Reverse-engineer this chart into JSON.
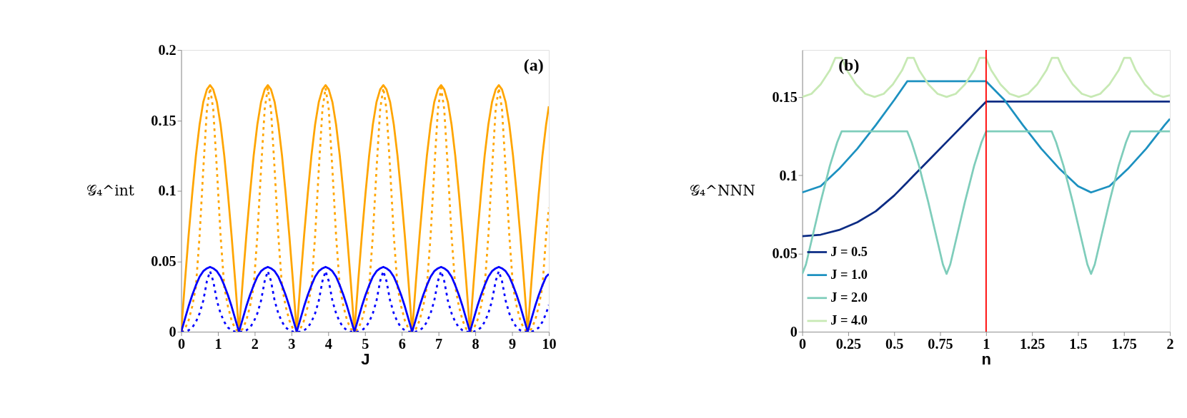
{
  "chart_data": [
    {
      "type": "line",
      "xlabel": "J",
      "ylabel": "𝒢₄^int",
      "annotations": [
        "(a)"
      ],
      "x": [
        0,
        0.1,
        0.2,
        0.3,
        0.4,
        0.5,
        0.6,
        0.7,
        0.785,
        0.871,
        0.971,
        1.071,
        1.171,
        1.271,
        1.371,
        1.471,
        1.571,
        1.671,
        1.771,
        1.871,
        1.971,
        2.071,
        2.171,
        2.271,
        2.356,
        2.442,
        2.542,
        2.642,
        2.742,
        2.842,
        2.942,
        3.042,
        3.142,
        3.242,
        3.342,
        3.442,
        3.542,
        3.642,
        3.742,
        3.842,
        3.927,
        4.013,
        4.113,
        4.213,
        4.313,
        4.413,
        4.513,
        4.613,
        4.712,
        4.812,
        4.912,
        5.012,
        5.112,
        5.212,
        5.312,
        5.412,
        5.498,
        5.583,
        5.683,
        5.783,
        5.883,
        5.983,
        6.083,
        6.183,
        6.283,
        6.383,
        6.483,
        6.583,
        6.683,
        6.783,
        6.883,
        6.983,
        7.069,
        7.154,
        7.254,
        7.354,
        7.454,
        7.554,
        7.654,
        7.754,
        7.854,
        7.954,
        8.054,
        8.154,
        8.254,
        8.354,
        8.454,
        8.554,
        8.639,
        8.725,
        8.825,
        8.925,
        9.025,
        9.125,
        9.225,
        9.325,
        9.425,
        9.525,
        9.625,
        9.725,
        9.825,
        9.925,
        10
      ],
      "series": [
        {
          "color": "#ffa500",
          "line_style": "solid",
          "values": [
            0,
            0.035,
            0.068,
            0.098,
            0.125,
            0.147,
            0.163,
            0.172,
            0.175,
            0.172,
            0.163,
            0.147,
            0.125,
            0.098,
            0.068,
            0.035,
            0,
            0.035,
            0.068,
            0.098,
            0.125,
            0.147,
            0.163,
            0.172,
            0.175,
            0.172,
            0.163,
            0.147,
            0.125,
            0.098,
            0.068,
            0.035,
            0,
            0.035,
            0.068,
            0.098,
            0.125,
            0.147,
            0.163,
            0.172,
            0.175,
            0.172,
            0.163,
            0.147,
            0.125,
            0.098,
            0.068,
            0.035,
            0,
            0.035,
            0.068,
            0.098,
            0.125,
            0.147,
            0.163,
            0.172,
            0.175,
            0.172,
            0.163,
            0.147,
            0.125,
            0.098,
            0.068,
            0.035,
            0,
            0.035,
            0.068,
            0.098,
            0.125,
            0.147,
            0.163,
            0.172,
            0.175,
            0.172,
            0.163,
            0.147,
            0.125,
            0.098,
            0.068,
            0.035,
            0,
            0.035,
            0.068,
            0.098,
            0.125,
            0.147,
            0.163,
            0.172,
            0.175,
            0.172,
            0.163,
            0.147,
            0.125,
            0.098,
            0.068,
            0.035,
            0,
            0.035,
            0.068,
            0.098,
            0.125,
            0.147,
            0.16
          ]
        },
        {
          "color": "#ffa500",
          "line_style": "dotted",
          "values": [
            0,
            0.002,
            0.008,
            0.018,
            0.032,
            0.068,
            0.115,
            0.158,
            0.173,
            0.158,
            0.115,
            0.068,
            0.032,
            0.018,
            0.008,
            0.002,
            0,
            0.002,
            0.008,
            0.018,
            0.032,
            0.068,
            0.115,
            0.158,
            0.173,
            0.158,
            0.115,
            0.068,
            0.032,
            0.018,
            0.008,
            0.002,
            0,
            0.002,
            0.008,
            0.018,
            0.032,
            0.068,
            0.115,
            0.158,
            0.173,
            0.158,
            0.115,
            0.068,
            0.032,
            0.018,
            0.008,
            0.002,
            0,
            0.002,
            0.008,
            0.018,
            0.032,
            0.068,
            0.115,
            0.158,
            0.173,
            0.158,
            0.115,
            0.068,
            0.032,
            0.018,
            0.008,
            0.002,
            0,
            0.002,
            0.008,
            0.018,
            0.032,
            0.068,
            0.115,
            0.158,
            0.173,
            0.158,
            0.115,
            0.068,
            0.032,
            0.018,
            0.008,
            0.002,
            0,
            0.002,
            0.008,
            0.018,
            0.032,
            0.068,
            0.115,
            0.158,
            0.173,
            0.158,
            0.115,
            0.068,
            0.032,
            0.018,
            0.008,
            0.002,
            0,
            0.002,
            0.008,
            0.018,
            0.032,
            0.068,
            0.088
          ]
        },
        {
          "color": "#0000ff",
          "line_style": "solid",
          "values": [
            0,
            0.009,
            0.018,
            0.026,
            0.033,
            0.039,
            0.043,
            0.045,
            0.046,
            0.045,
            0.043,
            0.039,
            0.033,
            0.026,
            0.018,
            0.009,
            0,
            0.009,
            0.018,
            0.026,
            0.033,
            0.039,
            0.043,
            0.045,
            0.046,
            0.045,
            0.043,
            0.039,
            0.033,
            0.026,
            0.018,
            0.009,
            0,
            0.009,
            0.018,
            0.026,
            0.033,
            0.039,
            0.043,
            0.045,
            0.046,
            0.045,
            0.043,
            0.039,
            0.033,
            0.026,
            0.018,
            0.009,
            0,
            0.009,
            0.018,
            0.026,
            0.033,
            0.039,
            0.043,
            0.045,
            0.046,
            0.045,
            0.043,
            0.039,
            0.033,
            0.026,
            0.018,
            0.009,
            0,
            0.009,
            0.018,
            0.026,
            0.033,
            0.039,
            0.043,
            0.045,
            0.046,
            0.045,
            0.043,
            0.039,
            0.033,
            0.026,
            0.018,
            0.009,
            0,
            0.009,
            0.018,
            0.026,
            0.033,
            0.039,
            0.043,
            0.045,
            0.046,
            0.045,
            0.043,
            0.039,
            0.033,
            0.026,
            0.018,
            0.009,
            0,
            0.009,
            0.018,
            0.026,
            0.033,
            0.039,
            0.041
          ]
        },
        {
          "color": "#0000ff",
          "line_style": "dotted",
          "values": [
            0,
            0,
            0.001,
            0.003,
            0.007,
            0.013,
            0.022,
            0.036,
            0.043,
            0.036,
            0.022,
            0.013,
            0.007,
            0.003,
            0.001,
            0,
            0,
            0,
            0.001,
            0.003,
            0.007,
            0.013,
            0.022,
            0.036,
            0.043,
            0.036,
            0.022,
            0.013,
            0.007,
            0.003,
            0.001,
            0,
            0,
            0,
            0.001,
            0.003,
            0.007,
            0.013,
            0.022,
            0.036,
            0.043,
            0.036,
            0.022,
            0.013,
            0.007,
            0.003,
            0.001,
            0,
            0,
            0,
            0.001,
            0.003,
            0.007,
            0.013,
            0.022,
            0.036,
            0.043,
            0.036,
            0.022,
            0.013,
            0.007,
            0.003,
            0.001,
            0,
            0,
            0,
            0.001,
            0.003,
            0.007,
            0.013,
            0.022,
            0.036,
            0.043,
            0.036,
            0.022,
            0.013,
            0.007,
            0.003,
            0.001,
            0,
            0,
            0,
            0.001,
            0.003,
            0.007,
            0.013,
            0.022,
            0.036,
            0.043,
            0.036,
            0.022,
            0.013,
            0.007,
            0.003,
            0.001,
            0,
            0,
            0,
            0.001,
            0.003,
            0.007,
            0.013,
            0.019
          ]
        }
      ],
      "xlim": [
        0,
        10
      ],
      "xticks": [
        0,
        1,
        2,
        3,
        4,
        5,
        6,
        7,
        8,
        9,
        10
      ],
      "ylim": [
        0,
        0.2
      ],
      "yticks": [
        0,
        0.05,
        0.1,
        0.15,
        0.2
      ],
      "grid": false,
      "legend": false
    },
    {
      "type": "line",
      "xlabel": "n",
      "ylabel": "𝒢₄^NNN",
      "annotations": [
        "(b)"
      ],
      "series": [
        {
          "name": "J = 0.5",
          "color": "#0c2c84",
          "x": [
            0,
            0.1,
            0.2,
            0.3,
            0.4,
            0.5,
            0.6,
            0.7,
            0.8,
            0.9,
            1.0,
            2.0
          ],
          "values": [
            0.061,
            0.062,
            0.065,
            0.07,
            0.077,
            0.087,
            0.099,
            0.111,
            0.123,
            0.135,
            0.147,
            0.147
          ]
        },
        {
          "name": "J = 1.0",
          "color": "#1d91c0",
          "x": [
            0,
            0.1,
            0.2,
            0.3,
            0.4,
            0.5,
            0.571,
            1.0,
            1.1,
            1.2,
            1.3,
            1.4,
            1.5,
            1.571,
            1.671,
            1.771,
            1.871,
            1.971,
            2.0
          ],
          "values": [
            0.089,
            0.093,
            0.104,
            0.117,
            0.132,
            0.148,
            0.16,
            0.16,
            0.148,
            0.132,
            0.117,
            0.104,
            0.093,
            0.089,
            0.093,
            0.104,
            0.117,
            0.132,
            0.136
          ]
        },
        {
          "name": "J = 2.0",
          "color": "#7fcdbb",
          "x": [
            0,
            0.02,
            0.05,
            0.1,
            0.15,
            0.19,
            0.214,
            0.571,
            0.595,
            0.635,
            0.685,
            0.735,
            0.765,
            0.785,
            0.805,
            0.835,
            0.885,
            0.935,
            0.975,
            1.0,
            1.357,
            1.381,
            1.421,
            1.471,
            1.521,
            1.551,
            1.571,
            1.591,
            1.621,
            1.671,
            1.721,
            1.761,
            1.785,
            2.0
          ],
          "values": [
            0.037,
            0.043,
            0.058,
            0.083,
            0.106,
            0.121,
            0.128,
            0.128,
            0.121,
            0.106,
            0.083,
            0.058,
            0.043,
            0.037,
            0.043,
            0.058,
            0.083,
            0.106,
            0.121,
            0.128,
            0.128,
            0.121,
            0.106,
            0.083,
            0.058,
            0.043,
            0.037,
            0.043,
            0.058,
            0.083,
            0.106,
            0.121,
            0.128,
            0.128
          ]
        },
        {
          "name": "J = 4.0",
          "color": "#c7e9b4",
          "x": [
            0,
            0.05,
            0.1,
            0.15,
            0.18,
            0.213,
            0.243,
            0.293,
            0.343,
            0.393,
            0.443,
            0.493,
            0.543,
            0.573,
            0.606,
            0.636,
            0.686,
            0.736,
            0.785,
            0.835,
            0.885,
            0.935,
            0.965,
            0.998,
            1.028,
            1.078,
            1.128,
            1.178,
            1.228,
            1.278,
            1.328,
            1.358,
            1.391,
            1.421,
            1.471,
            1.521,
            1.571,
            1.621,
            1.671,
            1.721,
            1.751,
            1.784,
            1.814,
            1.864,
            1.914,
            1.963,
            2.0
          ],
          "values": [
            0.15,
            0.152,
            0.158,
            0.167,
            0.175,
            0.175,
            0.167,
            0.158,
            0.152,
            0.15,
            0.152,
            0.158,
            0.167,
            0.175,
            0.175,
            0.167,
            0.158,
            0.152,
            0.15,
            0.152,
            0.158,
            0.167,
            0.175,
            0.175,
            0.167,
            0.158,
            0.152,
            0.15,
            0.152,
            0.158,
            0.167,
            0.175,
            0.175,
            0.167,
            0.158,
            0.152,
            0.15,
            0.152,
            0.158,
            0.167,
            0.175,
            0.175,
            0.167,
            0.158,
            0.152,
            0.15,
            0.151
          ]
        }
      ],
      "ref_lines": [
        {
          "axis": "x",
          "value": 1,
          "label": null,
          "color": "#ff0000"
        }
      ],
      "xlim": [
        0,
        2
      ],
      "xticks": [
        0,
        0.25,
        0.5,
        0.75,
        1,
        1.25,
        1.5,
        1.75,
        2
      ],
      "ylim": [
        0,
        0.18
      ],
      "yticks": [
        0,
        0.05,
        0.1,
        0.15
      ],
      "grid": false,
      "legend": "bottom left"
    }
  ]
}
